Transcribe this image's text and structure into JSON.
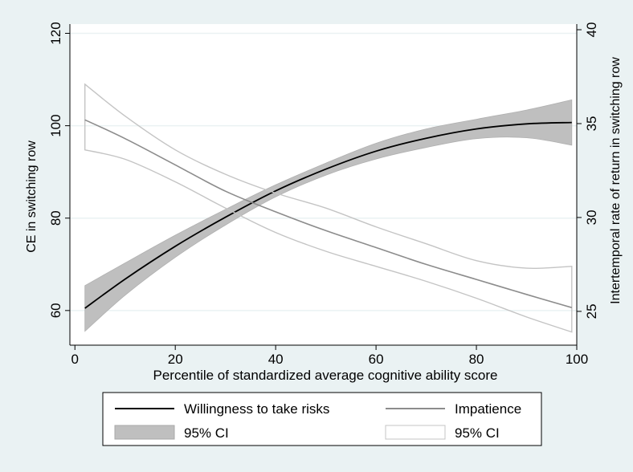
{
  "chart_data": {
    "type": "line",
    "title": "",
    "xlabel": "Percentile of standardized average cognitive ability score",
    "ylabel_left": "CE in switching row",
    "ylabel_right": "Intertemporal rate of return in switching row",
    "xlim": [
      -1,
      100
    ],
    "xticks": [
      0,
      20,
      40,
      60,
      80,
      100
    ],
    "ylim_left": [
      52.5,
      122
    ],
    "yticks_left": [
      60,
      80,
      100,
      120
    ],
    "ylim_right": [
      23.2,
      40.3
    ],
    "yticks_right": [
      25,
      30,
      35,
      40
    ],
    "grid": "horizontal",
    "legend_placement": "bottom",
    "legend": {
      "items": [
        {
          "label": "Willingness to take risks",
          "symbol": "line-black"
        },
        {
          "label": "Impatience",
          "symbol": "line-gray"
        },
        {
          "label": "95% CI",
          "symbol": "band-filled"
        },
        {
          "label": "95% CI",
          "symbol": "band-outline"
        }
      ]
    },
    "series": [
      {
        "name": "Willingness to take risks",
        "axis": "left",
        "x": [
          2,
          10,
          20,
          30,
          40,
          50,
          60,
          70,
          80,
          90,
          99
        ],
        "y": [
          60.5,
          66.8,
          73.9,
          80.2,
          85.9,
          90.6,
          94.5,
          97.3,
          99.3,
          100.4,
          100.7
        ],
        "ci_lower": [
          55.5,
          63.3,
          71.5,
          78.5,
          84.6,
          89.3,
          92.8,
          95.3,
          97.2,
          97.4,
          95.8
        ],
        "ci_upper": [
          65.4,
          70.3,
          76.3,
          81.9,
          87.2,
          91.9,
          96.2,
          99.3,
          101.4,
          103.4,
          105.6
        ]
      },
      {
        "name": "Impatience",
        "axis": "right",
        "x": [
          2,
          10,
          20,
          30,
          40,
          50,
          60,
          70,
          80,
          90,
          99
        ],
        "y": [
          35.2,
          34.2,
          32.8,
          31.4,
          30.3,
          29.3,
          28.4,
          27.5,
          26.7,
          25.9,
          25.2
        ],
        "ci_lower": [
          33.6,
          33.1,
          31.9,
          30.5,
          29.2,
          28.2,
          27.4,
          26.6,
          25.7,
          24.7,
          23.9
        ],
        "ci_upper": [
          37.1,
          35.4,
          33.6,
          32.3,
          31.3,
          30.5,
          29.5,
          28.6,
          27.7,
          27.3,
          27.4
        ]
      }
    ],
    "colors": {
      "background": "#eaf2f3",
      "plot_bg": "#ffffff",
      "risk_line": "#000000",
      "risk_band": "#bfbfbf",
      "impatience_line": "#8c8c8c",
      "impatience_band_edge": "#c4c4c4"
    }
  }
}
